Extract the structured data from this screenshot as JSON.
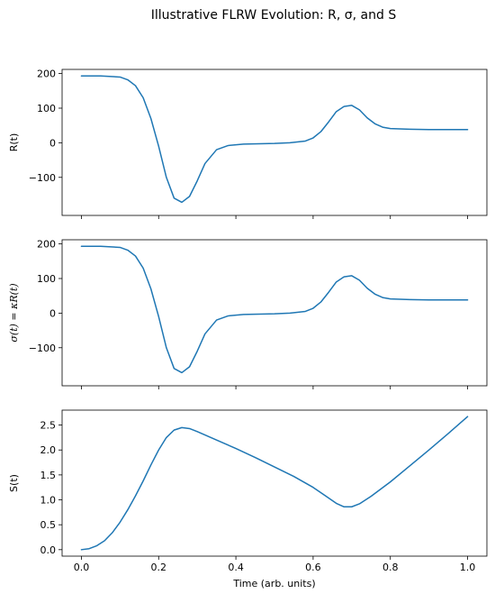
{
  "figure": {
    "title": "Illustrative FLRW Evolution: R, σ, and S"
  },
  "chart_data": [
    {
      "type": "line",
      "xlabel": "",
      "ylabel": "R(t)",
      "xlim": [
        -0.05,
        1.05
      ],
      "ylim": [
        -210,
        212
      ],
      "xticks": [
        0.0,
        0.2,
        0.4,
        0.6,
        0.8,
        1.0
      ],
      "xtick_labels": [
        "",
        "",
        "",
        "",
        "",
        ""
      ],
      "yticks": [
        -100,
        0,
        100,
        200
      ],
      "ytick_labels": [
        "−100",
        "0",
        "100",
        "200"
      ],
      "grid": false,
      "color": "#1f77b4",
      "series": [
        {
          "x": [
            0.0,
            0.05,
            0.1,
            0.12,
            0.14,
            0.16,
            0.18,
            0.2,
            0.22,
            0.24,
            0.26,
            0.28,
            0.3,
            0.32,
            0.35,
            0.38,
            0.42,
            0.46,
            0.5,
            0.54,
            0.58,
            0.6,
            0.62,
            0.64,
            0.66,
            0.68,
            0.7,
            0.72,
            0.74,
            0.76,
            0.78,
            0.8,
            0.85,
            0.9,
            0.95,
            1.0
          ],
          "y": [
            193,
            193,
            190,
            182,
            165,
            130,
            70,
            -10,
            -100,
            -160,
            -172,
            -155,
            -110,
            -60,
            -20,
            -8,
            -4,
            -3,
            -2,
            0,
            5,
            14,
            32,
            60,
            90,
            105,
            108,
            95,
            72,
            55,
            45,
            41,
            39,
            38,
            38,
            38
          ]
        }
      ]
    },
    {
      "type": "line",
      "xlabel": "",
      "ylabel": "σ(t) = κR(t)",
      "xlim": [
        -0.05,
        1.05
      ],
      "ylim": [
        -210,
        212
      ],
      "xticks": [
        0.0,
        0.2,
        0.4,
        0.6,
        0.8,
        1.0
      ],
      "xtick_labels": [
        "",
        "",
        "",
        "",
        "",
        ""
      ],
      "yticks": [
        -100,
        0,
        100,
        200
      ],
      "ytick_labels": [
        "−100",
        "0",
        "100",
        "200"
      ],
      "grid": false,
      "color": "#1f77b4",
      "series": [
        {
          "x": [
            0.0,
            0.05,
            0.1,
            0.12,
            0.14,
            0.16,
            0.18,
            0.2,
            0.22,
            0.24,
            0.26,
            0.28,
            0.3,
            0.32,
            0.35,
            0.38,
            0.42,
            0.46,
            0.5,
            0.54,
            0.58,
            0.6,
            0.62,
            0.64,
            0.66,
            0.68,
            0.7,
            0.72,
            0.74,
            0.76,
            0.78,
            0.8,
            0.85,
            0.9,
            0.95,
            1.0
          ],
          "y": [
            193,
            193,
            190,
            182,
            165,
            130,
            70,
            -10,
            -100,
            -160,
            -172,
            -155,
            -110,
            -60,
            -20,
            -8,
            -4,
            -3,
            -2,
            0,
            5,
            14,
            32,
            60,
            90,
            105,
            108,
            95,
            72,
            55,
            45,
            41,
            39,
            38,
            38,
            38
          ]
        }
      ]
    },
    {
      "type": "line",
      "xlabel": "Time (arb. units)",
      "ylabel": "S(t)",
      "xlim": [
        -0.05,
        1.05
      ],
      "ylim": [
        -0.13,
        2.8
      ],
      "xticks": [
        0.0,
        0.2,
        0.4,
        0.6,
        0.8,
        1.0
      ],
      "xtick_labels": [
        "0.0",
        "0.2",
        "0.4",
        "0.6",
        "0.8",
        "1.0"
      ],
      "yticks": [
        0.0,
        0.5,
        1.0,
        1.5,
        2.0,
        2.5
      ],
      "ytick_labels": [
        "0.0",
        "0.5",
        "1.0",
        "1.5",
        "2.0",
        "2.5"
      ],
      "grid": false,
      "color": "#1f77b4",
      "series": [
        {
          "x": [
            0.0,
            0.02,
            0.04,
            0.06,
            0.08,
            0.1,
            0.12,
            0.14,
            0.16,
            0.18,
            0.2,
            0.22,
            0.24,
            0.26,
            0.28,
            0.3,
            0.35,
            0.4,
            0.45,
            0.5,
            0.55,
            0.6,
            0.63,
            0.66,
            0.68,
            0.7,
            0.72,
            0.75,
            0.8,
            0.85,
            0.9,
            0.95,
            1.0
          ],
          "y": [
            0.0,
            0.02,
            0.08,
            0.18,
            0.34,
            0.55,
            0.8,
            1.08,
            1.38,
            1.7,
            2.0,
            2.25,
            2.4,
            2.45,
            2.43,
            2.37,
            2.2,
            2.03,
            1.85,
            1.66,
            1.47,
            1.25,
            1.09,
            0.93,
            0.86,
            0.86,
            0.92,
            1.07,
            1.36,
            1.68,
            2.0,
            2.33,
            2.67
          ]
        }
      ]
    }
  ]
}
